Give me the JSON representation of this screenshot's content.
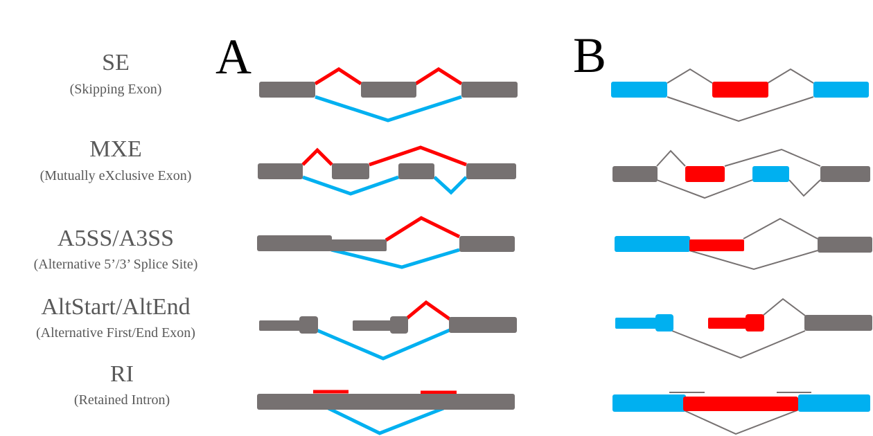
{
  "panels": [
    "A",
    "B"
  ],
  "rows": [
    {
      "title": "SE",
      "subtitle": "(Skipping Exon)"
    },
    {
      "title": "MXE",
      "subtitle": "(Mutually eXclusive Exon)"
    },
    {
      "title": "A5SS/A3SS",
      "subtitle": "(Alternative 5’/3’ Splice Site)"
    },
    {
      "title": "AltStart/AltEnd",
      "subtitle": "(Alternative First/End Exon)"
    },
    {
      "title": "RI",
      "subtitle": "(Retained Intron)"
    }
  ],
  "colors": {
    "exon": "#767171",
    "red": "#ff0000",
    "blue": "#00b0f0",
    "thin": "#767171",
    "text": "#595959"
  }
}
